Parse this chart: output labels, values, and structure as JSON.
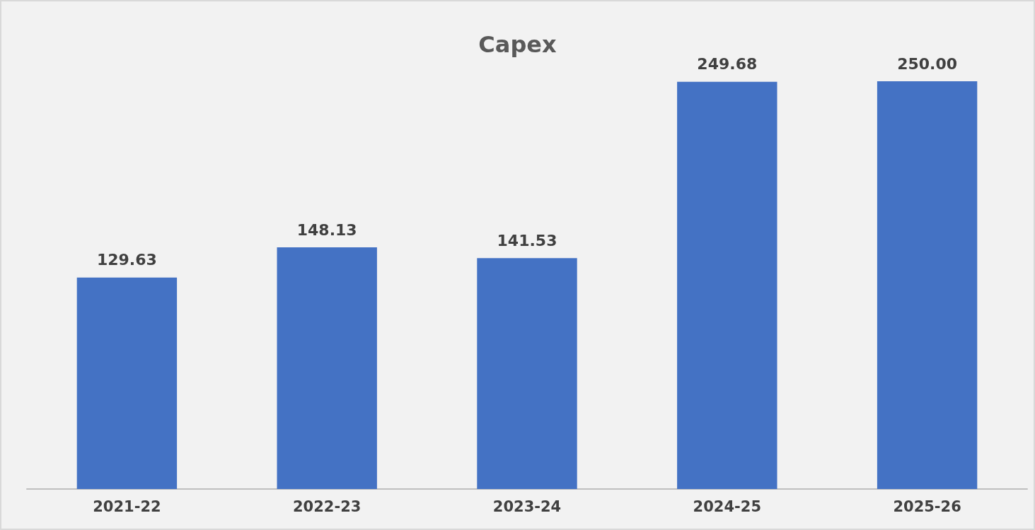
{
  "chart_data": {
    "type": "bar",
    "title": "Capex",
    "categories": [
      "2021-22",
      "2022-23",
      "2023-24",
      "2024-25",
      "2025-26"
    ],
    "values": [
      129.63,
      148.13,
      141.53,
      249.68,
      250.0
    ],
    "value_labels": [
      "129.63",
      "148.13",
      "141.53",
      "249.68",
      "250.00"
    ],
    "color": "#4472c4"
  }
}
